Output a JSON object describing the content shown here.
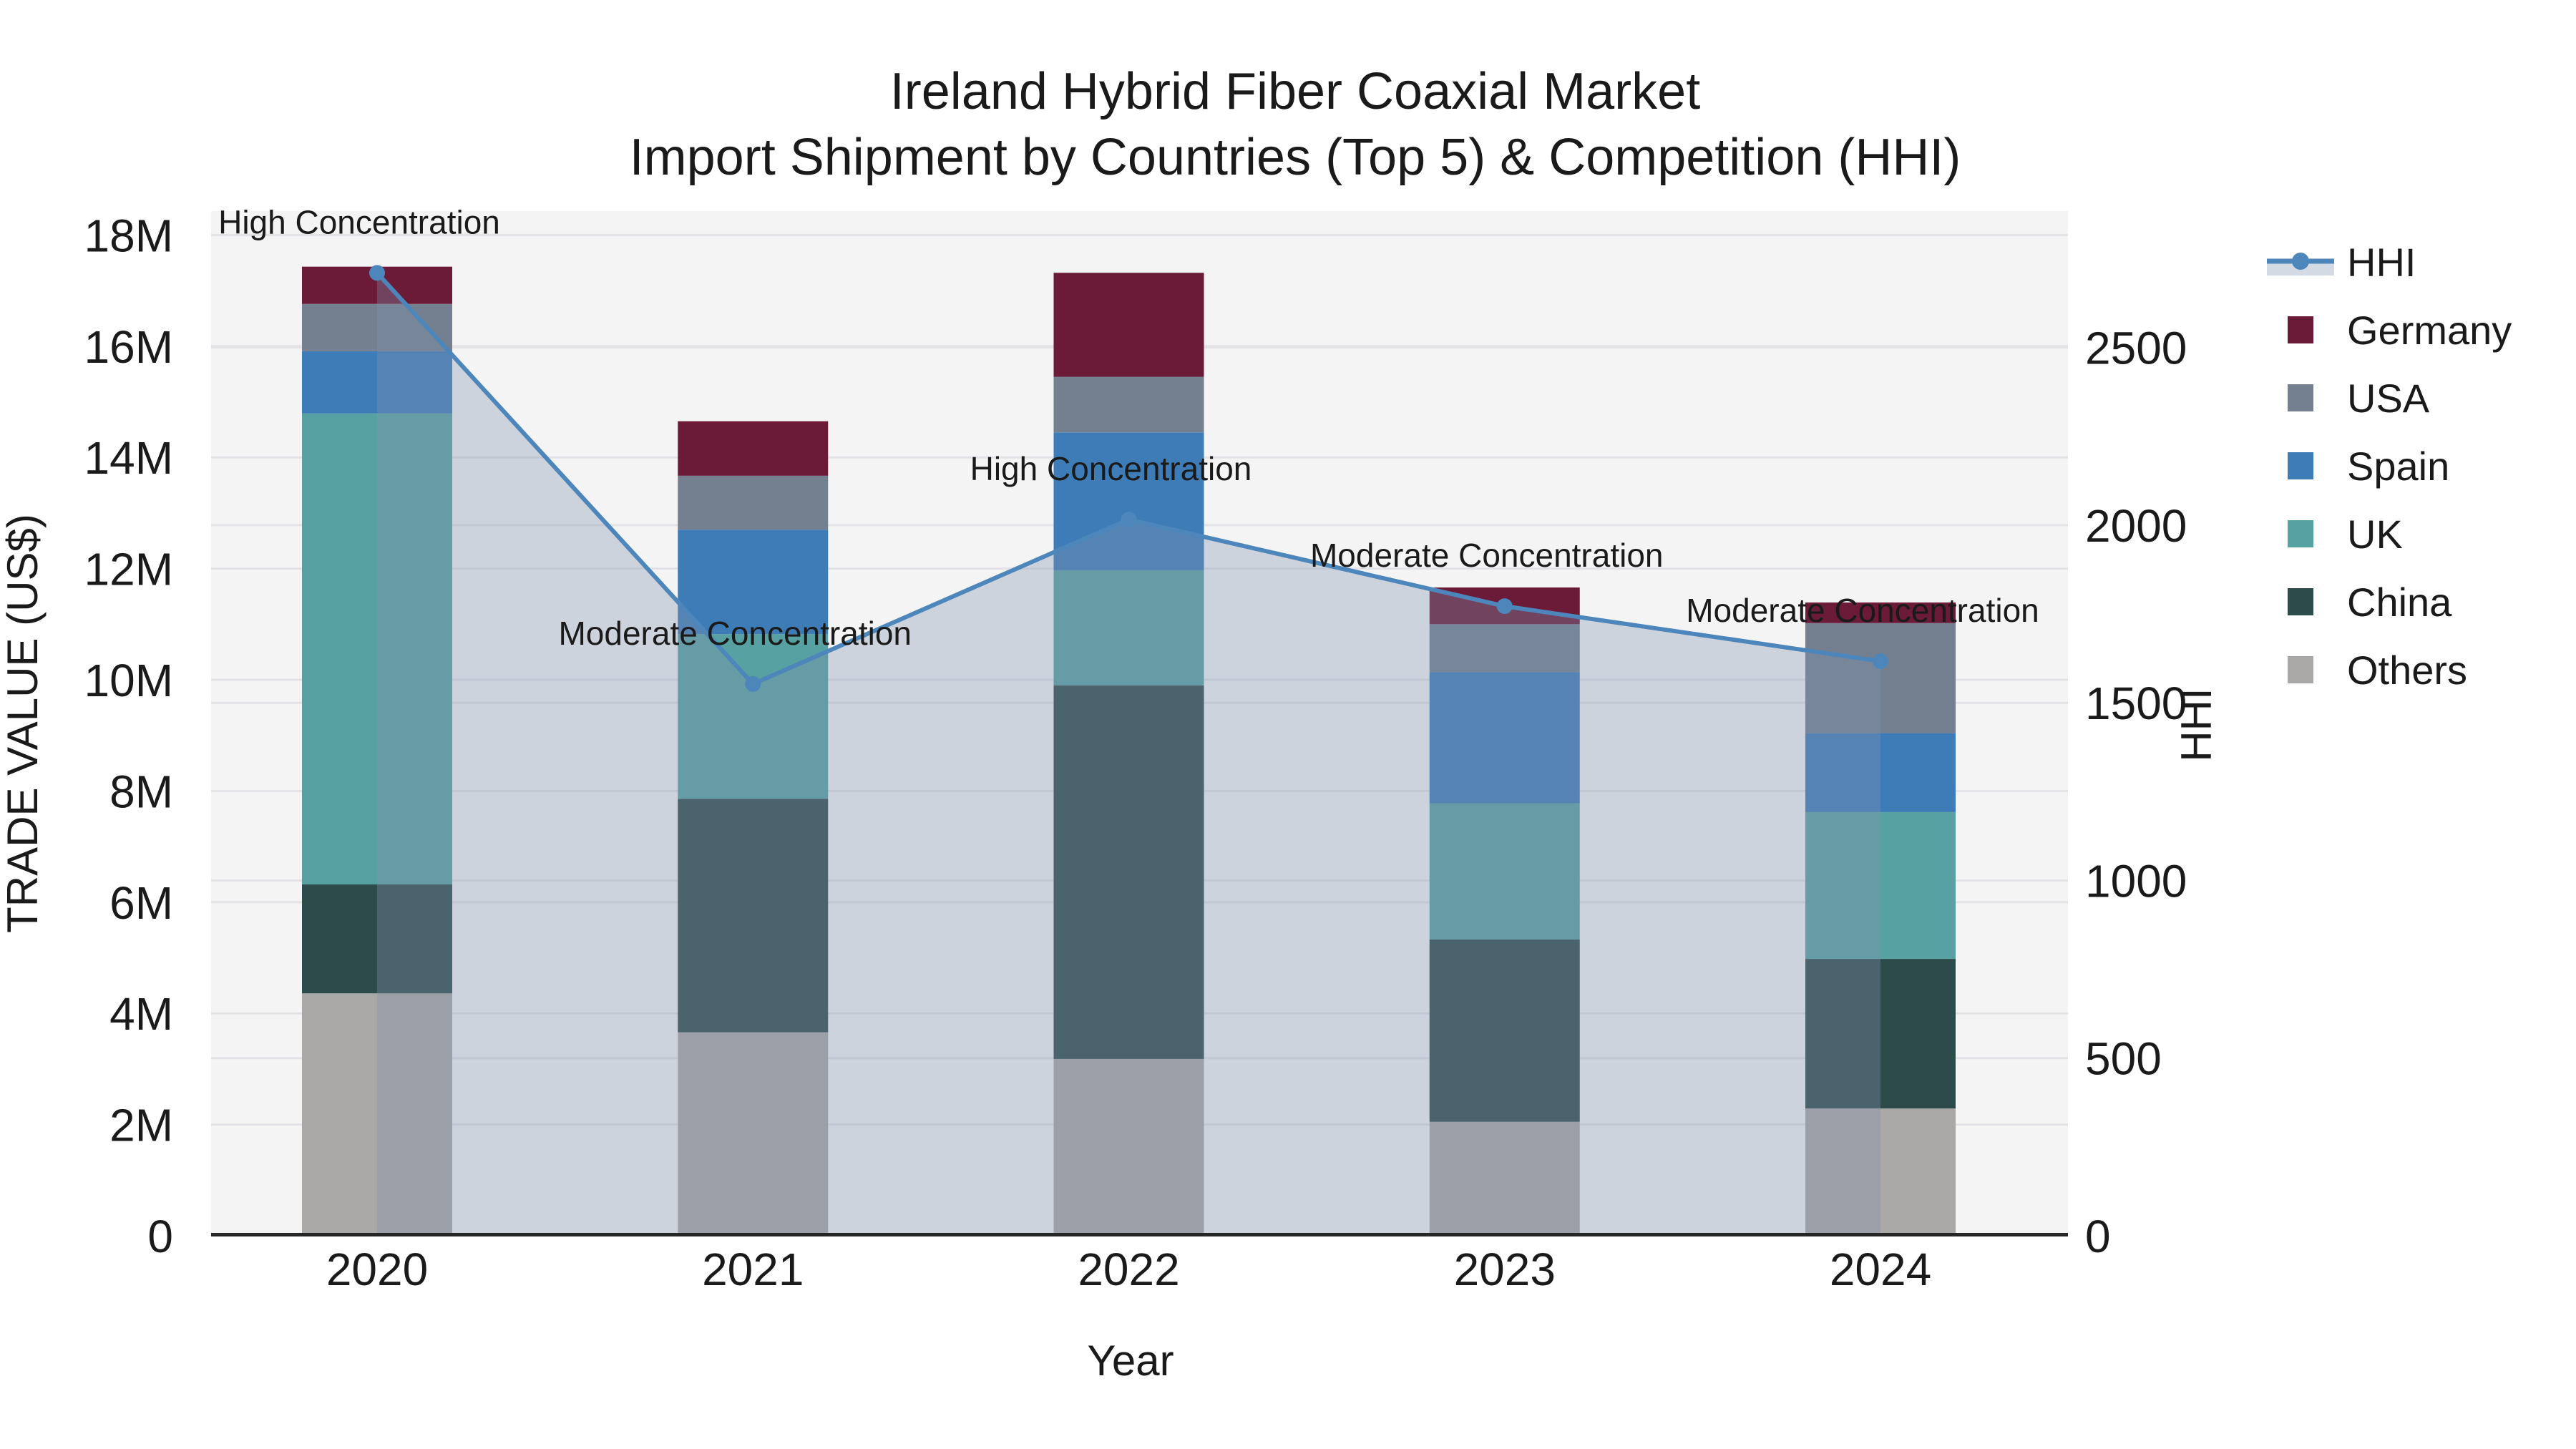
{
  "title": {
    "line1": "Ireland Hybrid Fiber Coaxial Market",
    "line2": "Import Shipment by Countries (Top 5) & Competition (HHI)"
  },
  "axes": {
    "x_label": "Year",
    "y_left_label": "TRADE VALUE (US$)",
    "y_right_label": "HHI",
    "x_tick_labels": [
      "2020",
      "2021",
      "2022",
      "2023",
      "2024"
    ],
    "y_left_tick_labels": [
      "0",
      "2M",
      "4M",
      "6M",
      "8M",
      "10M",
      "12M",
      "14M",
      "16M",
      "18M"
    ],
    "y_right_tick_labels": [
      "0",
      "500",
      "1000",
      "1500",
      "2000",
      "2500"
    ]
  },
  "legend": {
    "items": [
      {
        "label": "HHI",
        "type": "line",
        "color": "#4d86ba"
      },
      {
        "label": "Germany",
        "type": "patch",
        "color": "#6b1a37"
      },
      {
        "label": "USA",
        "type": "patch",
        "color": "#74808f"
      },
      {
        "label": "Spain",
        "type": "patch",
        "color": "#3e7cb8"
      },
      {
        "label": "UK",
        "type": "patch",
        "color": "#58a1a3"
      },
      {
        "label": "China",
        "type": "patch",
        "color": "#2e4b4c"
      },
      {
        "label": "Others",
        "type": "patch",
        "color": "#a9a8a6"
      }
    ]
  },
  "annotations": [
    {
      "year": "2020",
      "text": "High Concentration"
    },
    {
      "year": "2021",
      "text": "Moderate Concentration"
    },
    {
      "year": "2022",
      "text": "High Concentration"
    },
    {
      "year": "2023",
      "text": "Moderate Concentration"
    },
    {
      "year": "2024",
      "text": "Moderate Concentration"
    }
  ],
  "colors": {
    "plot_background": "#f4f4f5",
    "gridline": "#e3e3e7",
    "bottom_spine": "#262626",
    "hhi_line": "#4d86ba",
    "hhi_area_fill": "#8193ad",
    "hhi_area_alpha": 0.34,
    "text": "#1a1a1a"
  },
  "chart_data": {
    "type": "bar",
    "subtype": "stacked-bars-with-line-overlay",
    "categories": [
      "2020",
      "2021",
      "2022",
      "2023",
      "2024"
    ],
    "stack_order_bottom_to_top": [
      "Others",
      "China",
      "UK",
      "Spain",
      "USA",
      "Germany"
    ],
    "series": [
      {
        "name": "Others",
        "color": "#a9a8a6",
        "values": [
          4.36,
          3.66,
          3.18,
          2.05,
          2.29
        ]
      },
      {
        "name": "China",
        "color": "#2e4b4c",
        "values": [
          1.96,
          4.2,
          6.72,
          3.28,
          2.69
        ]
      },
      {
        "name": "UK",
        "color": "#58a1a3",
        "values": [
          8.47,
          2.96,
          2.07,
          2.45,
          2.64
        ]
      },
      {
        "name": "Spain",
        "color": "#3e7cb8",
        "values": [
          1.12,
          1.88,
          2.48,
          2.36,
          1.42
        ]
      },
      {
        "name": "USA",
        "color": "#74808f",
        "values": [
          0.85,
          0.97,
          1.0,
          0.86,
          1.98
        ]
      },
      {
        "name": "Germany",
        "color": "#6b1a37",
        "values": [
          0.67,
          0.98,
          1.87,
          0.66,
          0.37
        ]
      }
    ],
    "bar_totals_musd": [
      17.43,
      14.65,
      17.32,
      11.66,
      11.39
    ],
    "line_series": {
      "name": "HHI",
      "color": "#4d86ba",
      "values": [
        2710,
        1553,
        2016,
        1772,
        1617
      ],
      "area_fill": true
    },
    "units_left": "US$ millions",
    "units_right": "HHI index",
    "xlabel": "Year",
    "ylabel_left": "TRADE VALUE (US$)",
    "ylabel_right": "HHI",
    "ylim_left": [
      0,
      18.43
    ],
    "ylim_right": [
      0,
      2884
    ],
    "y_left_ticks": [
      0,
      2,
      4,
      6,
      8,
      10,
      12,
      14,
      16,
      18
    ],
    "y_right_ticks": [
      0,
      500,
      1000,
      1500,
      2000,
      2500
    ],
    "grid": true,
    "legend_position": "right-outside"
  }
}
